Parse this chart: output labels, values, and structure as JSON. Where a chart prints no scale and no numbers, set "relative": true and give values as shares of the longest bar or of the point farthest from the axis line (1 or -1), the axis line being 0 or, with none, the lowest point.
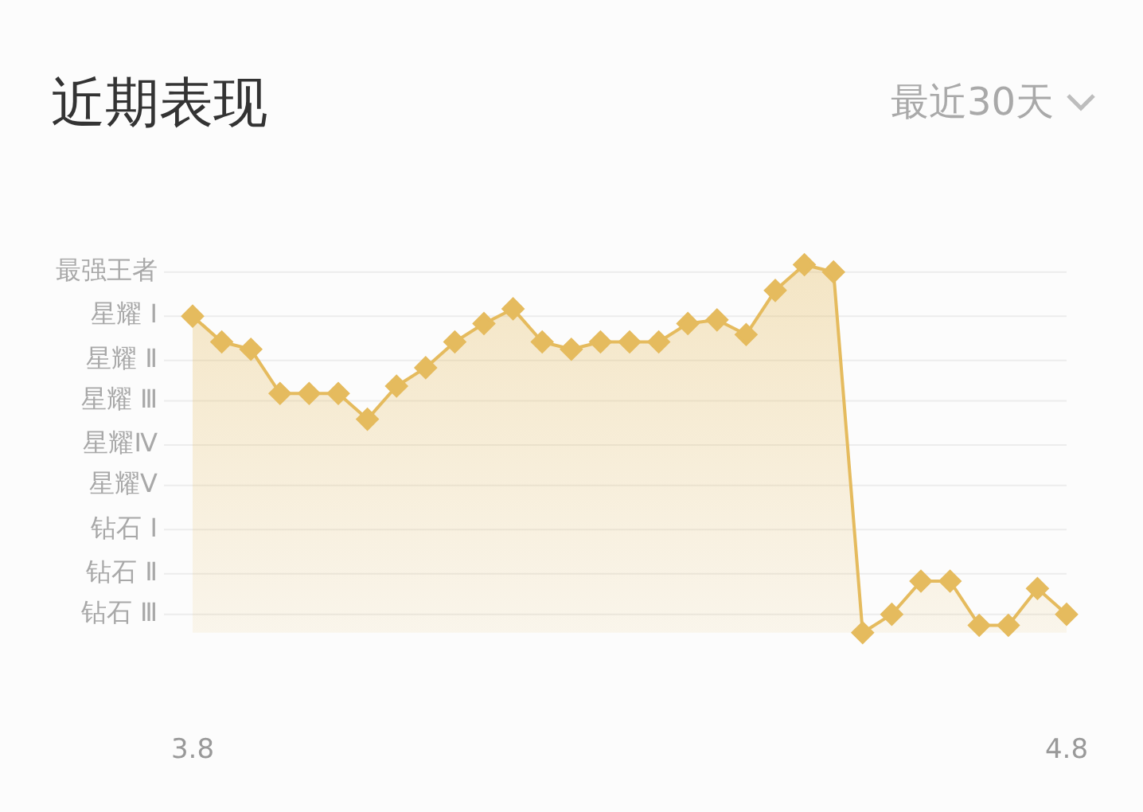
{
  "chart_data": {
    "type": "area",
    "title": "近期表现",
    "annotations": [
      "最近30天"
    ],
    "categories": [
      "3.8",
      null,
      null,
      null,
      null,
      null,
      null,
      null,
      null,
      null,
      null,
      null,
      null,
      null,
      null,
      null,
      null,
      null,
      null,
      null,
      null,
      null,
      null,
      null,
      null,
      null,
      null,
      null,
      null,
      null,
      "4.8"
    ],
    "relative": true,
    "series": [
      {
        "color": "#e5bb5e",
        "values": [
          0.86,
          0.79,
          0.77,
          0.65,
          0.65,
          0.65,
          0.58,
          0.67,
          0.72,
          0.79,
          0.84,
          0.88,
          0.79,
          0.77,
          0.79,
          0.79,
          0.79,
          0.84,
          0.85,
          0.81,
          0.93,
          1,
          0.98,
          0,
          0.05,
          0.14,
          0.14,
          0.02,
          0.02,
          0.12,
          0.05
        ]
      }
    ],
    "ref_lines": [
      {
        "axis": "y",
        "value": 0.05,
        "label": "钻石 Ⅲ",
        "color": "#ececec"
      },
      {
        "axis": "y",
        "value": 0.16,
        "label": "钻石 Ⅱ",
        "color": "#ececec"
      },
      {
        "axis": "y",
        "value": 0.28,
        "label": "钻石 Ⅰ",
        "color": "#ececec"
      },
      {
        "axis": "y",
        "value": 0.4,
        "label": "星耀Ⅴ",
        "color": "#ececec"
      },
      {
        "axis": "y",
        "value": 0.51,
        "label": "星耀Ⅳ",
        "color": "#ececec"
      },
      {
        "axis": "y",
        "value": 0.63,
        "label": "星耀 Ⅲ",
        "color": "#ececec"
      },
      {
        "axis": "y",
        "value": 0.74,
        "label": "星耀 Ⅱ",
        "color": "#ececec"
      },
      {
        "axis": "y",
        "value": 0.86,
        "label": "星耀 Ⅰ",
        "color": "#ececec"
      },
      {
        "axis": "y",
        "value": 0.98,
        "label": "最强王者",
        "color": "#ececec"
      }
    ],
    "marker": "diamond",
    "legend": false
  }
}
